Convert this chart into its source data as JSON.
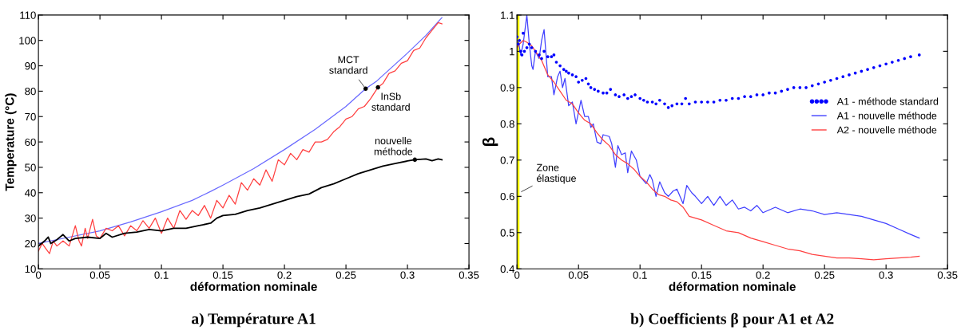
{
  "chart_data": [
    {
      "type": "line",
      "title": "a) Température A1",
      "xlabel": "déformation nominale",
      "ylabel": "Temperature (°C)",
      "xlim": [
        0,
        0.35
      ],
      "ylim": [
        10,
        110
      ],
      "xticks": [
        0,
        0.05,
        0.1,
        0.15,
        0.2,
        0.25,
        0.3,
        0.35
      ],
      "yticks": [
        10,
        20,
        30,
        40,
        50,
        60,
        70,
        80,
        90,
        100,
        110
      ],
      "grid": false,
      "legend": false,
      "series": [
        {
          "color": "#6a6aff",
          "x": [
            0,
            0.025,
            0.05,
            0.075,
            0.1,
            0.125,
            0.14,
            0.15,
            0.175,
            0.2,
            0.225,
            0.25,
            0.266,
            0.275,
            0.3,
            0.315,
            0.328
          ],
          "values": [
            20,
            22.5,
            25,
            28.5,
            32.5,
            37,
            40.5,
            43,
            49.5,
            57,
            65,
            74,
            81,
            84,
            95,
            102,
            109
          ]
        },
        {
          "color": "#ff4040",
          "x": [
            0,
            0.003,
            0.006,
            0.009,
            0.012,
            0.015,
            0.02,
            0.025,
            0.03,
            0.033,
            0.035,
            0.038,
            0.04,
            0.044,
            0.047,
            0.05,
            0.055,
            0.06,
            0.065,
            0.07,
            0.075,
            0.08,
            0.085,
            0.09,
            0.095,
            0.1,
            0.105,
            0.11,
            0.115,
            0.12,
            0.125,
            0.13,
            0.135,
            0.14,
            0.145,
            0.15,
            0.155,
            0.16,
            0.165,
            0.17,
            0.175,
            0.18,
            0.185,
            0.19,
            0.195,
            0.2,
            0.205,
            0.21,
            0.215,
            0.22,
            0.225,
            0.23,
            0.235,
            0.24,
            0.245,
            0.25,
            0.255,
            0.26,
            0.265,
            0.27,
            0.276,
            0.28,
            0.285,
            0.29,
            0.295,
            0.3,
            0.305,
            0.31,
            0.315,
            0.32,
            0.325,
            0.328
          ],
          "values": [
            17,
            20,
            18,
            16,
            21,
            19,
            21,
            19,
            27,
            21,
            19,
            26,
            22,
            29.5,
            23,
            22,
            26,
            25,
            27,
            23,
            27,
            25,
            29,
            26,
            30,
            24,
            30,
            26,
            33,
            29.5,
            33,
            31,
            35,
            30,
            37,
            34,
            39,
            35.5,
            44,
            41,
            45.5,
            43,
            49,
            44.5,
            53,
            51,
            55.5,
            53,
            57,
            56,
            60,
            60,
            61,
            64,
            66,
            69,
            70,
            73,
            74,
            77,
            81.5,
            83,
            87,
            88,
            91,
            92,
            96,
            97,
            101,
            104,
            107,
            106.5
          ]
        },
        {
          "color": "#000000",
          "x": [
            0,
            0.005,
            0.008,
            0.01,
            0.015,
            0.02,
            0.025,
            0.03,
            0.04,
            0.05,
            0.055,
            0.06,
            0.07,
            0.08,
            0.09,
            0.1,
            0.11,
            0.12,
            0.13,
            0.14,
            0.145,
            0.15,
            0.16,
            0.17,
            0.18,
            0.19,
            0.2,
            0.21,
            0.22,
            0.23,
            0.24,
            0.25,
            0.26,
            0.27,
            0.28,
            0.29,
            0.3,
            0.306,
            0.315,
            0.32,
            0.325,
            0.328
          ],
          "values": [
            19,
            21,
            22.5,
            20,
            21.5,
            23.5,
            21,
            22,
            22.5,
            22,
            24,
            22.5,
            24,
            24.5,
            25.5,
            25,
            26,
            26,
            27,
            28,
            30,
            31,
            31.5,
            33,
            34,
            35.5,
            37,
            38.5,
            39.5,
            42,
            43.5,
            45.5,
            47.5,
            49,
            50.5,
            51.5,
            52.5,
            53,
            53.3,
            52.6,
            53.3,
            53
          ]
        }
      ],
      "annotations": [
        {
          "text": "MCT\nstandard",
          "x": 0.266,
          "y": 81
        },
        {
          "text": "InSb\nstandard",
          "x": 0.276,
          "y": 81.5
        },
        {
          "text": "nouvelle\nméthode",
          "x": 0.306,
          "y": 53
        }
      ]
    },
    {
      "type": "line",
      "title": "b) Coefficients β pour A1 et A2",
      "xlabel": "déformation nominale",
      "ylabel": "β",
      "xlim": [
        0,
        0.35
      ],
      "ylim": [
        0.4,
        1.1
      ],
      "xticks": [
        0,
        0.05,
        0.1,
        0.15,
        0.2,
        0.25,
        0.3,
        0.35
      ],
      "yticks": [
        0.4,
        0.5,
        0.6,
        0.7,
        0.8,
        0.9,
        1,
        1.1
      ],
      "grid": false,
      "legend": "right",
      "bands": [
        {
          "axis": "x",
          "from": 0,
          "to": 0.002,
          "color": "#ffff00",
          "label": "Zone\nélastique"
        }
      ],
      "series": [
        {
          "name": "A1 - méthode standard",
          "type": "scatter",
          "marker": "circle",
          "color": "#0000ff",
          "x": [
            0,
            0.001,
            0.002,
            0.003,
            0.004,
            0.005,
            0.006,
            0.008,
            0.01,
            0.012,
            0.015,
            0.018,
            0.02,
            0.022,
            0.025,
            0.028,
            0.03,
            0.032,
            0.035,
            0.038,
            0.04,
            0.042,
            0.045,
            0.048,
            0.05,
            0.053,
            0.056,
            0.058,
            0.06,
            0.063,
            0.066,
            0.07,
            0.073,
            0.076,
            0.08,
            0.083,
            0.087,
            0.09,
            0.093,
            0.096,
            0.1,
            0.103,
            0.106,
            0.11,
            0.113,
            0.116,
            0.12,
            0.123,
            0.126,
            0.13,
            0.134,
            0.137,
            0.14,
            0.145,
            0.15,
            0.155,
            0.16,
            0.165,
            0.17,
            0.175,
            0.18,
            0.185,
            0.19,
            0.195,
            0.2,
            0.205,
            0.21,
            0.215,
            0.22,
            0.225,
            0.23,
            0.235,
            0.24,
            0.245,
            0.25,
            0.255,
            0.26,
            0.265,
            0.27,
            0.275,
            0.28,
            0.285,
            0.29,
            0.295,
            0.3,
            0.305,
            0.31,
            0.315,
            0.32,
            0.327
          ],
          "values": [
            1.04,
            1.02,
            1.03,
            1.0,
            0.99,
            1.05,
            1.0,
            1.01,
            1.02,
            1.01,
            1.0,
            0.99,
            0.98,
            1.0,
            0.985,
            0.985,
            0.99,
            0.97,
            0.96,
            0.95,
            0.945,
            0.94,
            0.935,
            0.93,
            0.915,
            0.92,
            0.925,
            0.91,
            0.9,
            0.895,
            0.89,
            0.885,
            0.885,
            0.895,
            0.88,
            0.875,
            0.88,
            0.87,
            0.875,
            0.88,
            0.87,
            0.865,
            0.86,
            0.86,
            0.855,
            0.865,
            0.855,
            0.845,
            0.85,
            0.855,
            0.855,
            0.87,
            0.855,
            0.86,
            0.86,
            0.86,
            0.86,
            0.865,
            0.865,
            0.87,
            0.87,
            0.875,
            0.875,
            0.88,
            0.88,
            0.885,
            0.885,
            0.89,
            0.895,
            0.9,
            0.9,
            0.9,
            0.905,
            0.91,
            0.915,
            0.92,
            0.925,
            0.93,
            0.935,
            0.94,
            0.945,
            0.95,
            0.955,
            0.96,
            0.965,
            0.97,
            0.975,
            0.98,
            0.985,
            0.99
          ]
        },
        {
          "name": "A1 - nouvelle méthode",
          "type": "line",
          "color": "#4040ff",
          "x": [
            0.001,
            0.003,
            0.005,
            0.008,
            0.01,
            0.012,
            0.013,
            0.015,
            0.018,
            0.02,
            0.022,
            0.025,
            0.028,
            0.03,
            0.033,
            0.035,
            0.037,
            0.039,
            0.042,
            0.045,
            0.048,
            0.052,
            0.055,
            0.058,
            0.06,
            0.062,
            0.065,
            0.068,
            0.07,
            0.075,
            0.077,
            0.08,
            0.082,
            0.085,
            0.088,
            0.09,
            0.093,
            0.097,
            0.1,
            0.105,
            0.108,
            0.11,
            0.113,
            0.116,
            0.12,
            0.123,
            0.127,
            0.13,
            0.135,
            0.138,
            0.142,
            0.145,
            0.15,
            0.155,
            0.16,
            0.165,
            0.17,
            0.175,
            0.18,
            0.185,
            0.19,
            0.195,
            0.2,
            0.21,
            0.22,
            0.23,
            0.24,
            0.25,
            0.26,
            0.27,
            0.28,
            0.29,
            0.3,
            0.31,
            0.32,
            0.327
          ],
          "values": [
            1.03,
            0.99,
            1.02,
            1.1,
            1.02,
            0.96,
            0.95,
            1.0,
            0.98,
            1.03,
            1.06,
            0.93,
            0.93,
            0.88,
            0.93,
            0.945,
            0.9,
            0.925,
            0.85,
            0.86,
            0.8,
            0.865,
            0.82,
            0.82,
            0.79,
            0.8,
            0.75,
            0.745,
            0.77,
            0.765,
            0.745,
            0.68,
            0.74,
            0.715,
            0.72,
            0.665,
            0.725,
            0.7,
            0.655,
            0.635,
            0.66,
            0.645,
            0.6,
            0.64,
            0.61,
            0.6,
            0.615,
            0.62,
            0.58,
            0.63,
            0.61,
            0.6,
            0.58,
            0.6,
            0.575,
            0.6,
            0.575,
            0.59,
            0.565,
            0.57,
            0.56,
            0.575,
            0.555,
            0.57,
            0.555,
            0.565,
            0.56,
            0.55,
            0.555,
            0.55,
            0.545,
            0.535,
            0.525,
            0.51,
            0.495,
            0.485
          ]
        },
        {
          "name": "A2 - nouvelle méthode",
          "type": "line",
          "color": "#ff4040",
          "x": [
            0,
            0.002,
            0.005,
            0.008,
            0.012,
            0.015,
            0.02,
            0.025,
            0.03,
            0.035,
            0.04,
            0.045,
            0.05,
            0.055,
            0.06,
            0.065,
            0.07,
            0.075,
            0.08,
            0.085,
            0.09,
            0.095,
            0.1,
            0.105,
            0.11,
            0.115,
            0.12,
            0.125,
            0.13,
            0.135,
            0.14,
            0.15,
            0.16,
            0.17,
            0.18,
            0.19,
            0.2,
            0.21,
            0.22,
            0.23,
            0.24,
            0.25,
            0.26,
            0.27,
            0.28,
            0.29,
            0.3,
            0.31,
            0.32,
            0.327
          ],
          "values": [
            1.01,
            1.02,
            1.03,
            1.025,
            1.015,
            1.0,
            0.975,
            0.935,
            0.915,
            0.89,
            0.865,
            0.855,
            0.83,
            0.81,
            0.8,
            0.775,
            0.755,
            0.74,
            0.715,
            0.7,
            0.69,
            0.675,
            0.655,
            0.64,
            0.62,
            0.605,
            0.6,
            0.59,
            0.585,
            0.57,
            0.545,
            0.535,
            0.52,
            0.505,
            0.5,
            0.485,
            0.475,
            0.465,
            0.455,
            0.45,
            0.44,
            0.435,
            0.43,
            0.43,
            0.428,
            0.425,
            0.428,
            0.43,
            0.432,
            0.435
          ]
        }
      ]
    }
  ]
}
